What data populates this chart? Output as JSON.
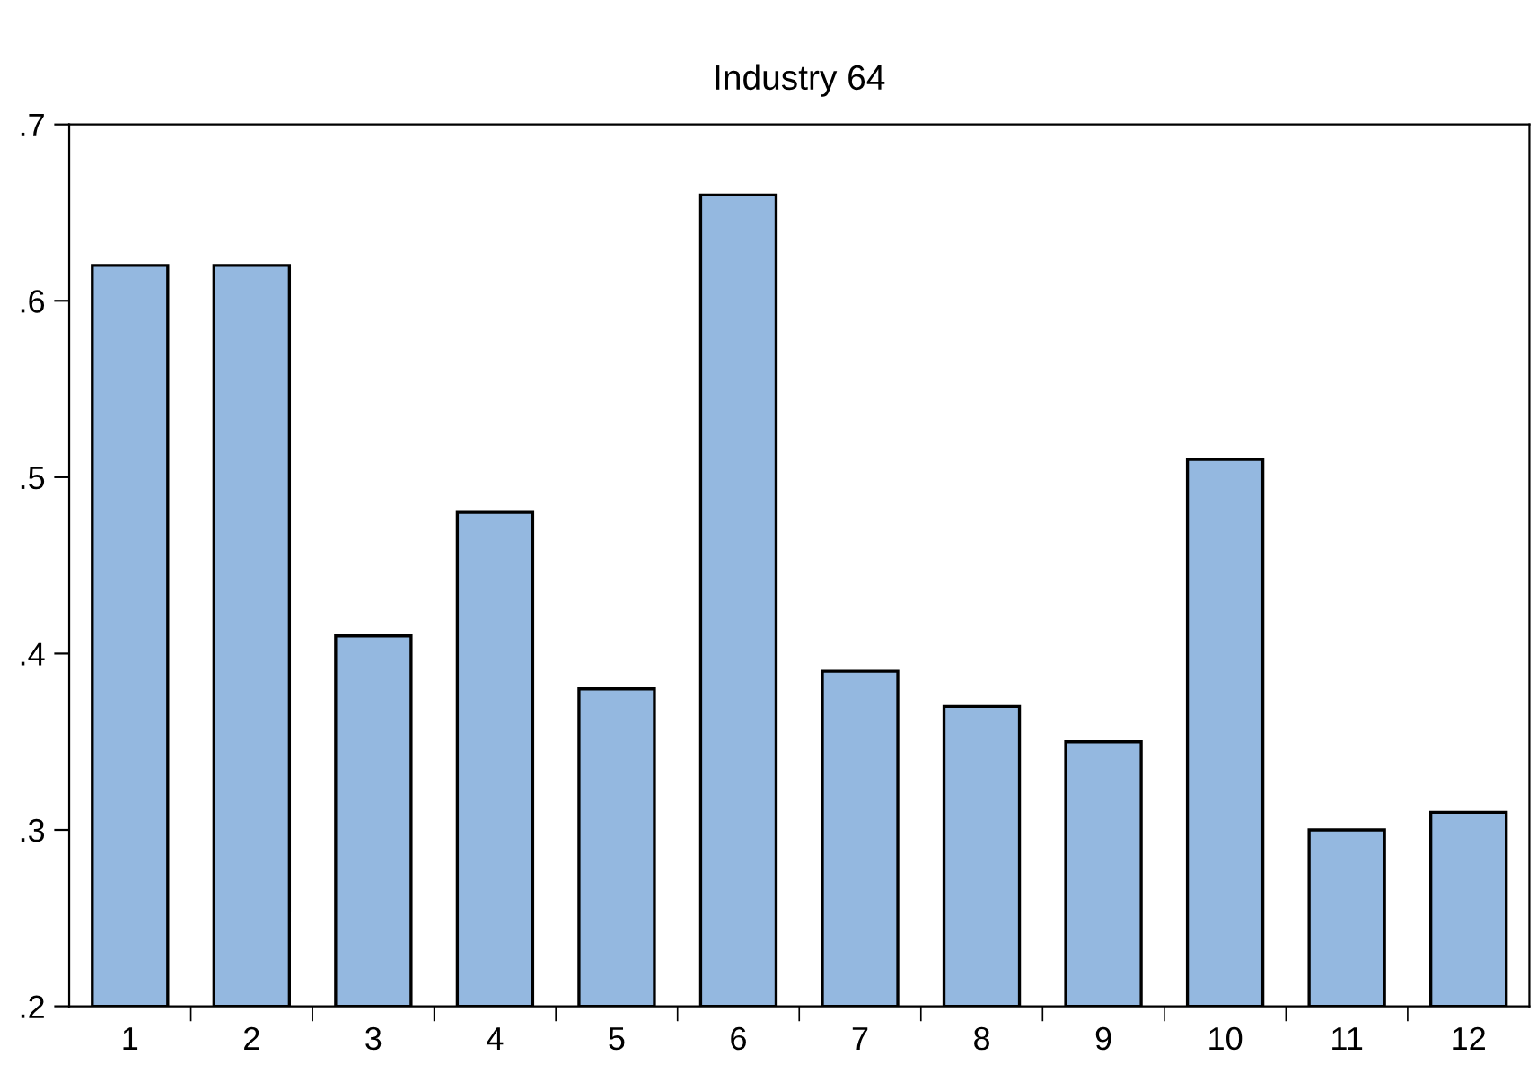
{
  "chart_data": {
    "type": "bar",
    "title": "Industry 64",
    "categories": [
      "1",
      "2",
      "3",
      "4",
      "5",
      "6",
      "7",
      "8",
      "9",
      "10",
      "11",
      "12"
    ],
    "values": [
      0.62,
      0.62,
      0.41,
      0.48,
      0.38,
      0.66,
      0.39,
      0.37,
      0.35,
      0.51,
      0.3,
      0.31
    ],
    "color": "#94b8e0",
    "ylim": [
      0.2,
      0.7
    ],
    "yticks": [
      {
        "value": 0.2,
        "label": ".2"
      },
      {
        "value": 0.3,
        "label": ".3"
      },
      {
        "value": 0.4,
        "label": ".4"
      },
      {
        "value": 0.5,
        "label": ".5"
      },
      {
        "value": 0.6,
        "label": ".6"
      },
      {
        "value": 0.7,
        "label": ".7"
      }
    ],
    "grid": false
  }
}
